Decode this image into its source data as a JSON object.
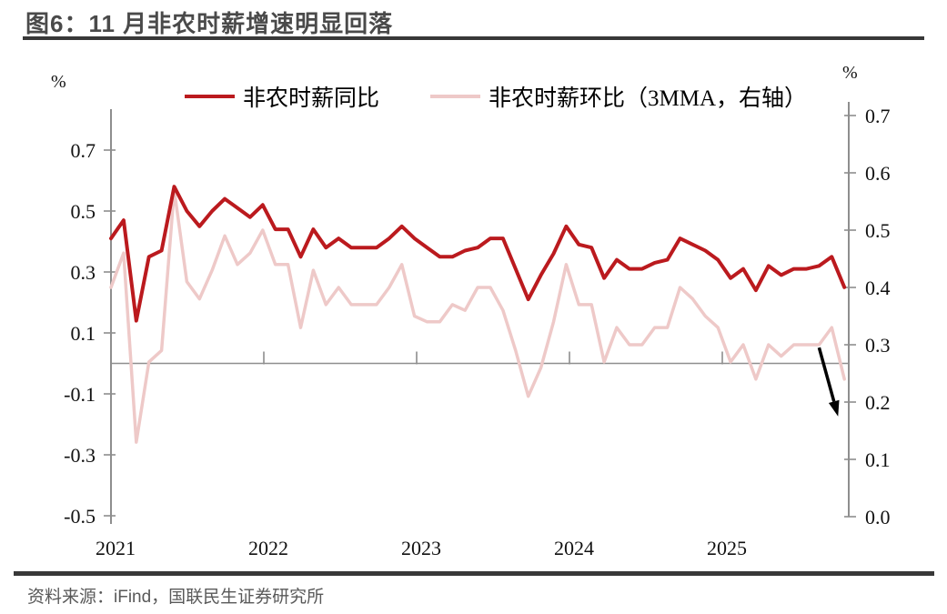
{
  "figure": {
    "title": "图6：11 月非农时薪增速明显回落",
    "source": "资料来源：iFind，国联民生证券研究所"
  },
  "chart_data": {
    "type": "line",
    "title": "图6：11 月非农时薪增速明显回落",
    "x": {
      "start": "2021-01",
      "end": "2025-11",
      "interval": "monthly",
      "tick_labels": [
        "2021",
        "2022",
        "2023",
        "2024",
        "2025"
      ]
    },
    "axes": {
      "left": {
        "unit": "%",
        "min": -0.5,
        "max": 0.7,
        "ticks": [
          0.7,
          0.5,
          0.3,
          0.1,
          -0.1,
          -0.3,
          -0.5
        ]
      },
      "right": {
        "unit": "%",
        "min": 0.0,
        "max": 0.7,
        "ticks": [
          0.7,
          0.6,
          0.5,
          0.4,
          0.3,
          0.2,
          0.1,
          0.0
        ]
      }
    },
    "grid": "none",
    "zero_line_on_left_axis": true,
    "legend_position": "top-center",
    "series": [
      {
        "name": "非农时薪同比",
        "axis": "left",
        "color": "#bb1a1e",
        "line_width": 4,
        "values": [
          0.41,
          0.47,
          0.14,
          0.35,
          0.37,
          0.58,
          0.5,
          0.45,
          0.5,
          0.54,
          0.51,
          0.48,
          0.52,
          0.44,
          0.44,
          0.35,
          0.44,
          0.38,
          0.41,
          0.38,
          0.38,
          0.38,
          0.41,
          0.45,
          0.41,
          0.38,
          0.35,
          0.35,
          0.37,
          0.38,
          0.41,
          0.41,
          0.31,
          0.21,
          0.29,
          0.36,
          0.45,
          0.39,
          0.38,
          0.28,
          0.34,
          0.31,
          0.31,
          0.33,
          0.34,
          0.41,
          0.39,
          0.37,
          0.34,
          0.28,
          0.31,
          0.24,
          0.32,
          0.29,
          0.31,
          0.31,
          0.32,
          0.35,
          0.25
        ]
      },
      {
        "name": "非农时薪环比（3MMA，右轴）",
        "axis": "right",
        "color": "#eec9c8",
        "line_width": 3.5,
        "values": [
          0.4,
          0.46,
          0.13,
          0.27,
          0.29,
          0.57,
          0.41,
          0.38,
          0.43,
          0.49,
          0.44,
          0.46,
          0.5,
          0.44,
          0.44,
          0.33,
          0.43,
          0.37,
          0.4,
          0.37,
          0.37,
          0.37,
          0.4,
          0.44,
          0.35,
          0.34,
          0.34,
          0.37,
          0.36,
          0.4,
          0.4,
          0.36,
          0.29,
          0.21,
          0.26,
          0.34,
          0.44,
          0.37,
          0.37,
          0.27,
          0.33,
          0.3,
          0.3,
          0.33,
          0.33,
          0.4,
          0.38,
          0.35,
          0.33,
          0.27,
          0.3,
          0.24,
          0.3,
          0.28,
          0.3,
          0.3,
          0.3,
          0.33,
          0.24
        ]
      }
    ],
    "annotation": {
      "type": "arrow",
      "color": "#000000",
      "from": {
        "month_index": 56.0,
        "value_right_axis": 0.295
      },
      "to": {
        "month_index": 57.5,
        "value_right_axis": 0.175
      }
    }
  }
}
